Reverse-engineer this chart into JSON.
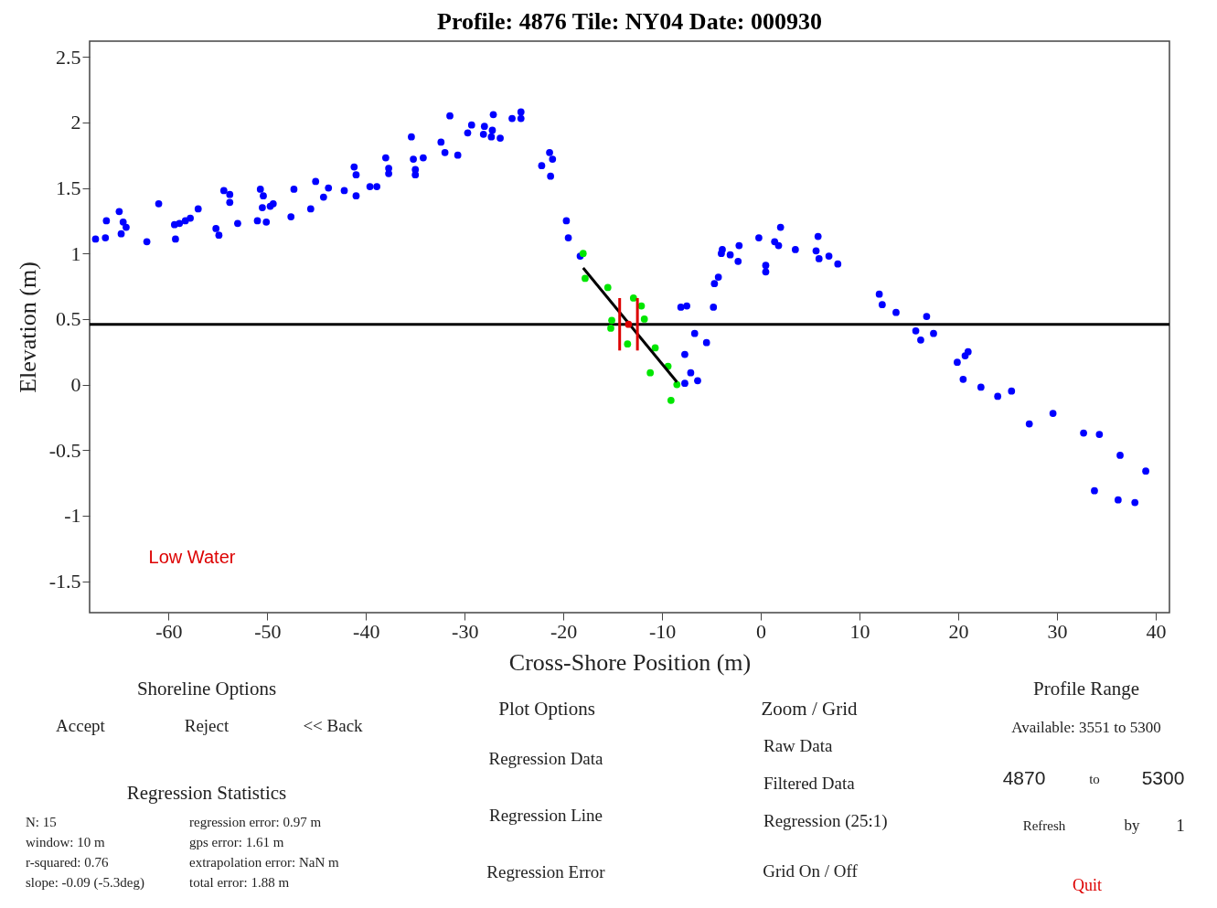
{
  "chart_data": {
    "type": "scatter",
    "title": "Profile: 4876     Tile: NY04     Date: 000930",
    "xlabel": "Cross-Shore Position (m)",
    "ylabel": "Elevation (m)",
    "xlim": [
      -68,
      41.4
    ],
    "ylim": [
      -1.74,
      2.62
    ],
    "xticks": [
      -60,
      -50,
      -40,
      -30,
      -20,
      -10,
      0,
      10,
      20,
      30,
      40
    ],
    "yticks": [
      -1.5,
      -1,
      -0.5,
      0,
      0.5,
      1,
      1.5,
      2,
      2.5
    ],
    "marker": "circle",
    "series": [
      {
        "color": "#0000ff",
        "x": [
          -67.4,
          -66.4,
          -66.3,
          -65.0,
          -64.6,
          -64.3,
          -64.8,
          -62.2,
          -61.0,
          -59.3,
          -59.4,
          -58.9,
          -58.3,
          -57.8,
          -57.0,
          -55.2,
          -54.9,
          -54.4,
          -53.8,
          -53.8,
          -53.0,
          -51.0,
          -50.1,
          -50.7,
          -50.4,
          -50.5,
          -49.7,
          -49.4,
          -47.6,
          -47.3,
          -45.6,
          -45.1,
          -44.3,
          -43.8,
          -42.2,
          -41.0,
          -41.2,
          -41.0,
          -39.6,
          -38.9,
          -38.0,
          -37.7,
          -37.7,
          -35.4,
          -35.2,
          -34.2,
          -35.0,
          -35.0,
          -32.4,
          -32.0,
          -31.5,
          -30.7,
          -29.7,
          -29.3,
          -28.0,
          -28.1,
          -27.3,
          -27.2,
          -27.1,
          -26.4,
          -25.2,
          -24.3,
          -24.3,
          -22.2,
          -21.4,
          -21.1,
          -21.3,
          -19.7,
          -19.5,
          -18.3,
          -8.1,
          -7.5,
          -6.7,
          -5.5,
          -7.7,
          -7.1,
          -7.7,
          -6.4,
          -4.8,
          -4.7,
          -4.3,
          -4.0,
          -3.9,
          -3.1,
          -2.2,
          -2.3,
          -0.2,
          0.5,
          0.5,
          1.4,
          1.8,
          2.0,
          3.5,
          5.6,
          5.8,
          5.9,
          6.9,
          7.8,
          12.0,
          12.3,
          13.7,
          16.8,
          15.7,
          17.5,
          16.2,
          21.0,
          20.7,
          19.9,
          20.5,
          22.3,
          24.0,
          25.4,
          27.2,
          29.6,
          32.7,
          34.3,
          36.4,
          39.0,
          33.8,
          36.2,
          37.9
        ],
        "values": [
          1.11,
          1.12,
          1.25,
          1.32,
          1.24,
          1.2,
          1.15,
          1.09,
          1.38,
          1.11,
          1.22,
          1.23,
          1.25,
          1.27,
          1.34,
          1.19,
          1.14,
          1.48,
          1.45,
          1.39,
          1.23,
          1.25,
          1.24,
          1.49,
          1.44,
          1.35,
          1.36,
          1.38,
          1.28,
          1.49,
          1.34,
          1.55,
          1.43,
          1.5,
          1.48,
          1.44,
          1.66,
          1.6,
          1.51,
          1.51,
          1.73,
          1.65,
          1.61,
          1.89,
          1.72,
          1.73,
          1.64,
          1.6,
          1.85,
          1.77,
          2.05,
          1.75,
          1.92,
          1.98,
          1.97,
          1.91,
          1.89,
          1.94,
          2.06,
          1.88,
          2.03,
          2.08,
          2.03,
          1.67,
          1.77,
          1.72,
          1.59,
          1.25,
          1.12,
          0.98,
          0.59,
          0.6,
          0.39,
          0.32,
          0.23,
          0.09,
          0.01,
          0.03,
          0.59,
          0.77,
          0.82,
          1.0,
          1.03,
          0.99,
          1.06,
          0.94,
          1.12,
          0.91,
          0.86,
          1.09,
          1.06,
          1.2,
          1.03,
          1.02,
          1.13,
          0.96,
          0.98,
          0.92,
          0.69,
          0.61,
          0.55,
          0.52,
          0.41,
          0.39,
          0.34,
          0.25,
          0.22,
          0.17,
          0.04,
          -0.02,
          -0.09,
          -0.05,
          -0.3,
          -0.22,
          -0.37,
          -0.38,
          -0.54,
          -0.66,
          -0.81,
          -0.88,
          -0.9
        ]
      },
      {
        "color": "#00e600",
        "x": [
          -18.0,
          -17.8,
          -15.5,
          -15.1,
          -15.2,
          -12.9,
          -12.1,
          -11.8,
          -13.5,
          -10.7,
          -11.2,
          -9.4,
          -8.5,
          -9.1
        ],
        "values": [
          1.0,
          0.81,
          0.74,
          0.49,
          0.43,
          0.66,
          0.6,
          0.5,
          0.31,
          0.28,
          0.09,
          0.14,
          0.0,
          -0.12
        ]
      },
      {
        "type": "line",
        "marker": "none",
        "color": "#000000",
        "x": [
          -18.0,
          -8.5
        ],
        "values": [
          0.89,
          0.02
        ]
      },
      {
        "type": "line",
        "marker": "none",
        "color": "#dd0000",
        "x": [
          -14.3,
          -14.3
        ],
        "values": [
          0.26,
          0.66
        ]
      },
      {
        "type": "line",
        "marker": "none",
        "color": "#dd0000",
        "x": [
          -12.5,
          -12.5
        ],
        "values": [
          0.26,
          0.66
        ]
      },
      {
        "color": "#dd0000",
        "x": [
          -13.4
        ],
        "values": [
          0.46
        ]
      }
    ],
    "ref_lines": [
      {
        "axis": "y",
        "value": 0.46,
        "color": "#000000"
      }
    ],
    "annotations": [
      "Low Water",
      "Shoreline Options",
      "Accept",
      "Reject",
      "<< Back",
      "Regression Statistics",
      "N: 15",
      "window: 10 m",
      "r-squared: 0.76",
      "slope: -0.09 (-5.3deg)",
      "regression error: 0.97 m",
      "gps error: 1.61 m",
      "extrapolation error: NaN m",
      "total error: 1.88 m",
      "Plot Options",
      "Regression Data",
      "Regression Line",
      "Regression Error",
      "Zoom / Grid",
      "Raw Data",
      "Filtered Data",
      "Regression (25:1)",
      "Grid On / Off",
      "Profile Range",
      "Available: 3551 to 5300",
      "4870",
      "to",
      "5300",
      "Refresh",
      "by",
      "1",
      "Quit"
    ]
  }
}
